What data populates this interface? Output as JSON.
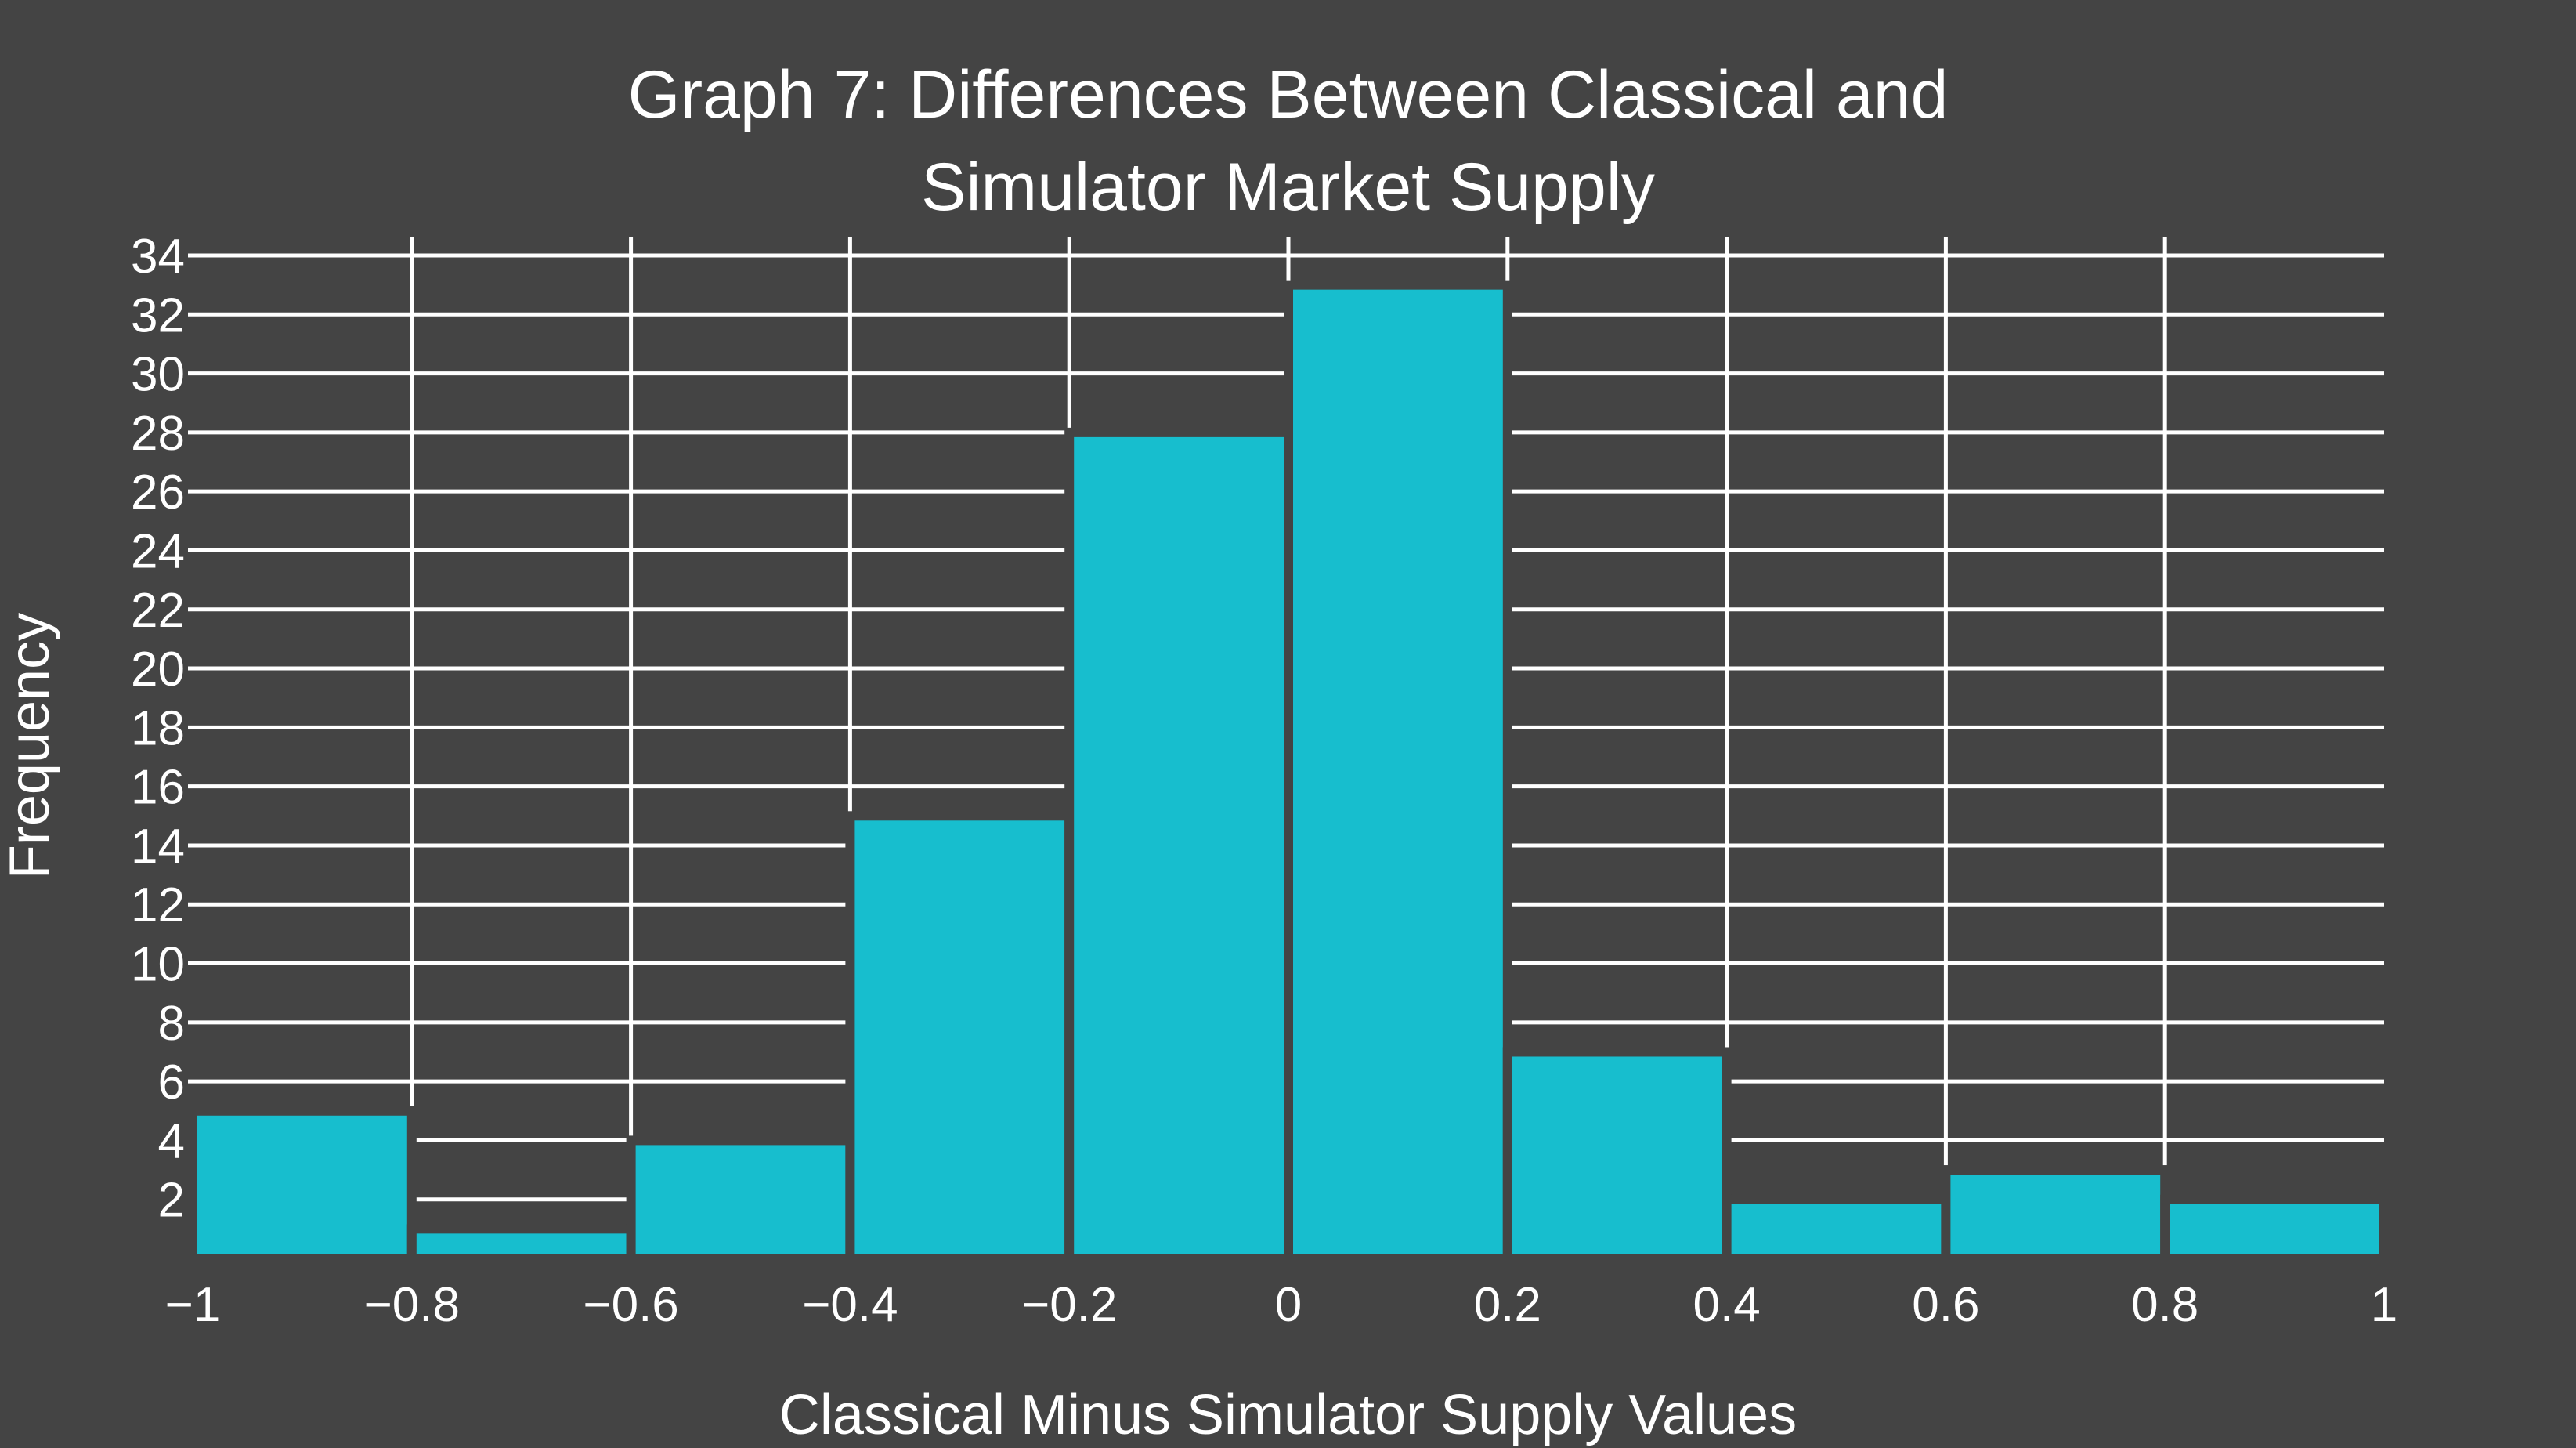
{
  "colors": {
    "background": "#444444",
    "bar": "#17bece",
    "grid": "#ffffff",
    "text": "#ffffff"
  },
  "chart_data": {
    "type": "bar",
    "title": "Graph 7: Differences Between Classical and Simulator Market Supply",
    "title_lines": [
      "Graph 7: Differences Between Classical and",
      "Simulator Market Supply"
    ],
    "xlabel": "Classical Minus Simulator Supply Values",
    "ylabel": "Frequency",
    "bins": [
      {
        "start": -1.0,
        "end": -0.8,
        "value": 5
      },
      {
        "start": -0.8,
        "end": -0.6,
        "value": 1
      },
      {
        "start": -0.6,
        "end": -0.4,
        "value": 4
      },
      {
        "start": -0.4,
        "end": -0.2,
        "value": 15
      },
      {
        "start": -0.2,
        "end": 0.0,
        "value": 28
      },
      {
        "start": 0.0,
        "end": 0.2,
        "value": 33
      },
      {
        "start": 0.2,
        "end": 0.4,
        "value": 7
      },
      {
        "start": 0.4,
        "end": 0.6,
        "value": 2
      },
      {
        "start": 0.6,
        "end": 0.8,
        "value": 3
      },
      {
        "start": 0.8,
        "end": 1.0,
        "value": 2
      }
    ],
    "xlim": [
      -1,
      1
    ],
    "ylim": [
      0,
      34
    ],
    "x_ticks": [
      -1,
      -0.8,
      -0.6,
      -0.4,
      -0.2,
      0,
      0.2,
      0.4,
      0.6,
      0.8,
      1
    ],
    "x_tick_labels": [
      "−1",
      "−0.8",
      "−0.6",
      "−0.4",
      "−0.2",
      "0",
      "0.2",
      "0.4",
      "0.6",
      "0.8",
      "1"
    ],
    "y_ticks": [
      2,
      4,
      6,
      8,
      10,
      12,
      14,
      16,
      18,
      20,
      22,
      24,
      26,
      28,
      30,
      32,
      34
    ],
    "y_tick_labels": [
      "2",
      "4",
      "6",
      "8",
      "10",
      "12",
      "14",
      "16",
      "18",
      "20",
      "22",
      "24",
      "26",
      "28",
      "30",
      "32",
      "34"
    ],
    "grid": true,
    "legend": false
  }
}
